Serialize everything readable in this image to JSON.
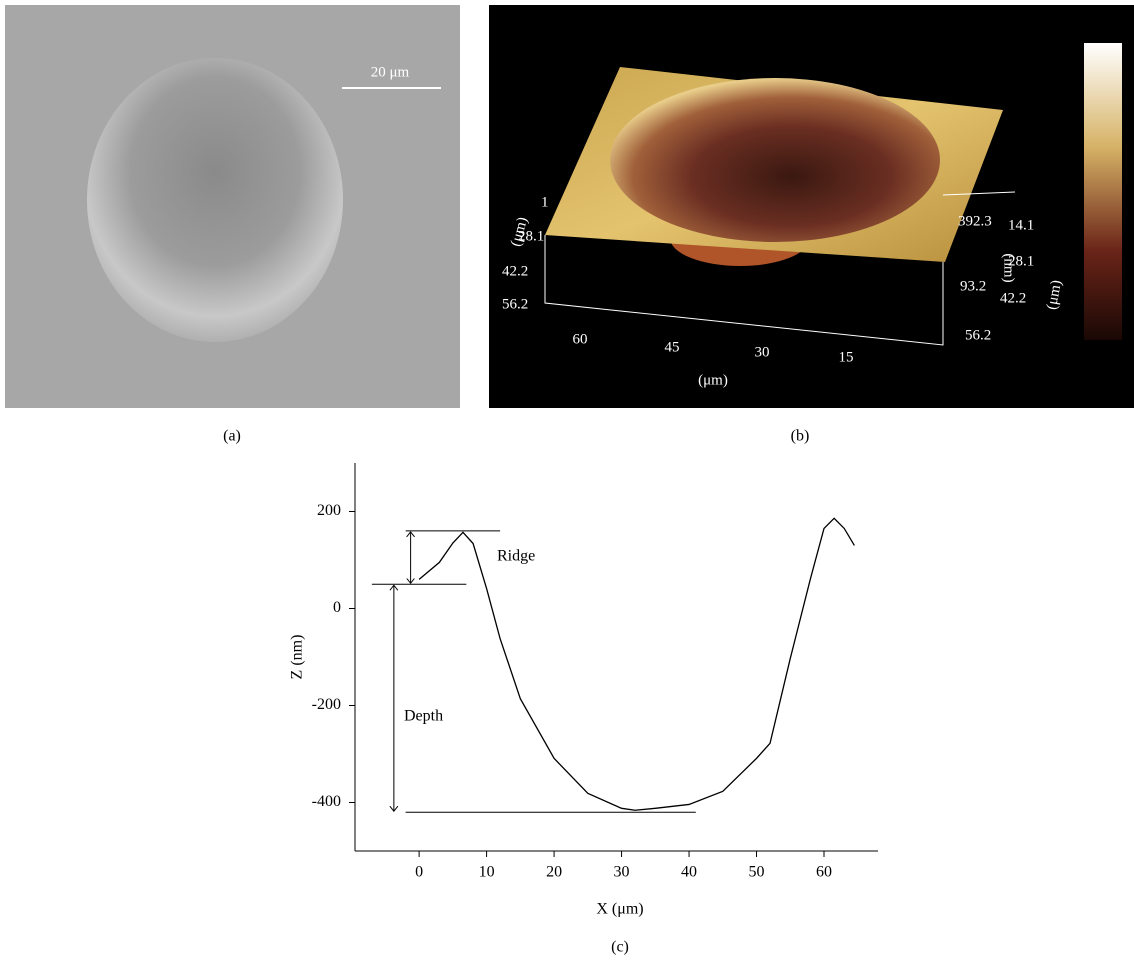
{
  "panel_a": {
    "label": "(a)",
    "scale_bar": "20 μm"
  },
  "panel_b": {
    "label": "(b)",
    "left_axis_label": "(μm)",
    "left_ticks": [
      "1",
      "28.1",
      "42.2",
      "56.2"
    ],
    "bottom_ticks": [
      "60",
      "45",
      "30",
      "15"
    ],
    "bottom_axis_label": "(μm)",
    "z_ticks": [
      "392.3",
      "93.2"
    ],
    "z_axis_label": "(nm)",
    "right_ticks": [
      "14.1",
      "28.1",
      "42.2",
      "56.2"
    ],
    "right_axis_label": "(μm)"
  },
  "chart_data": {
    "type": "line",
    "label": "(c)",
    "x_label": "X (μm)",
    "y_label": "Z (nm)",
    "x": [
      0,
      3,
      5,
      6.5,
      8,
      10,
      12,
      15,
      20,
      25,
      30,
      32,
      35,
      40,
      45,
      50,
      52,
      55,
      58,
      60,
      61.5,
      63,
      64.5
    ],
    "values": [
      60,
      95,
      135,
      157,
      134,
      41,
      -62,
      -186,
      -309,
      -381,
      -412,
      -416,
      -412,
      -404,
      -377,
      -309,
      -278,
      -103,
      62,
      165,
      186,
      165,
      130
    ],
    "color": "#000000",
    "xlim": [
      -9.5,
      68
    ],
    "xticks": [
      0,
      10,
      20,
      30,
      40,
      50,
      60
    ],
    "ylim": [
      -500,
      300
    ],
    "yticks": [
      -400,
      -200,
      0,
      200
    ],
    "reference_lines": [
      {
        "y": 160,
        "x": [
          -2,
          12
        ]
      },
      {
        "y": 50,
        "x": [
          -7,
          7
        ]
      },
      {
        "y": -420,
        "x": [
          -2,
          41
        ]
      }
    ],
    "annotations": [
      {
        "text": "Ridge"
      },
      {
        "text": "Depth"
      }
    ]
  }
}
